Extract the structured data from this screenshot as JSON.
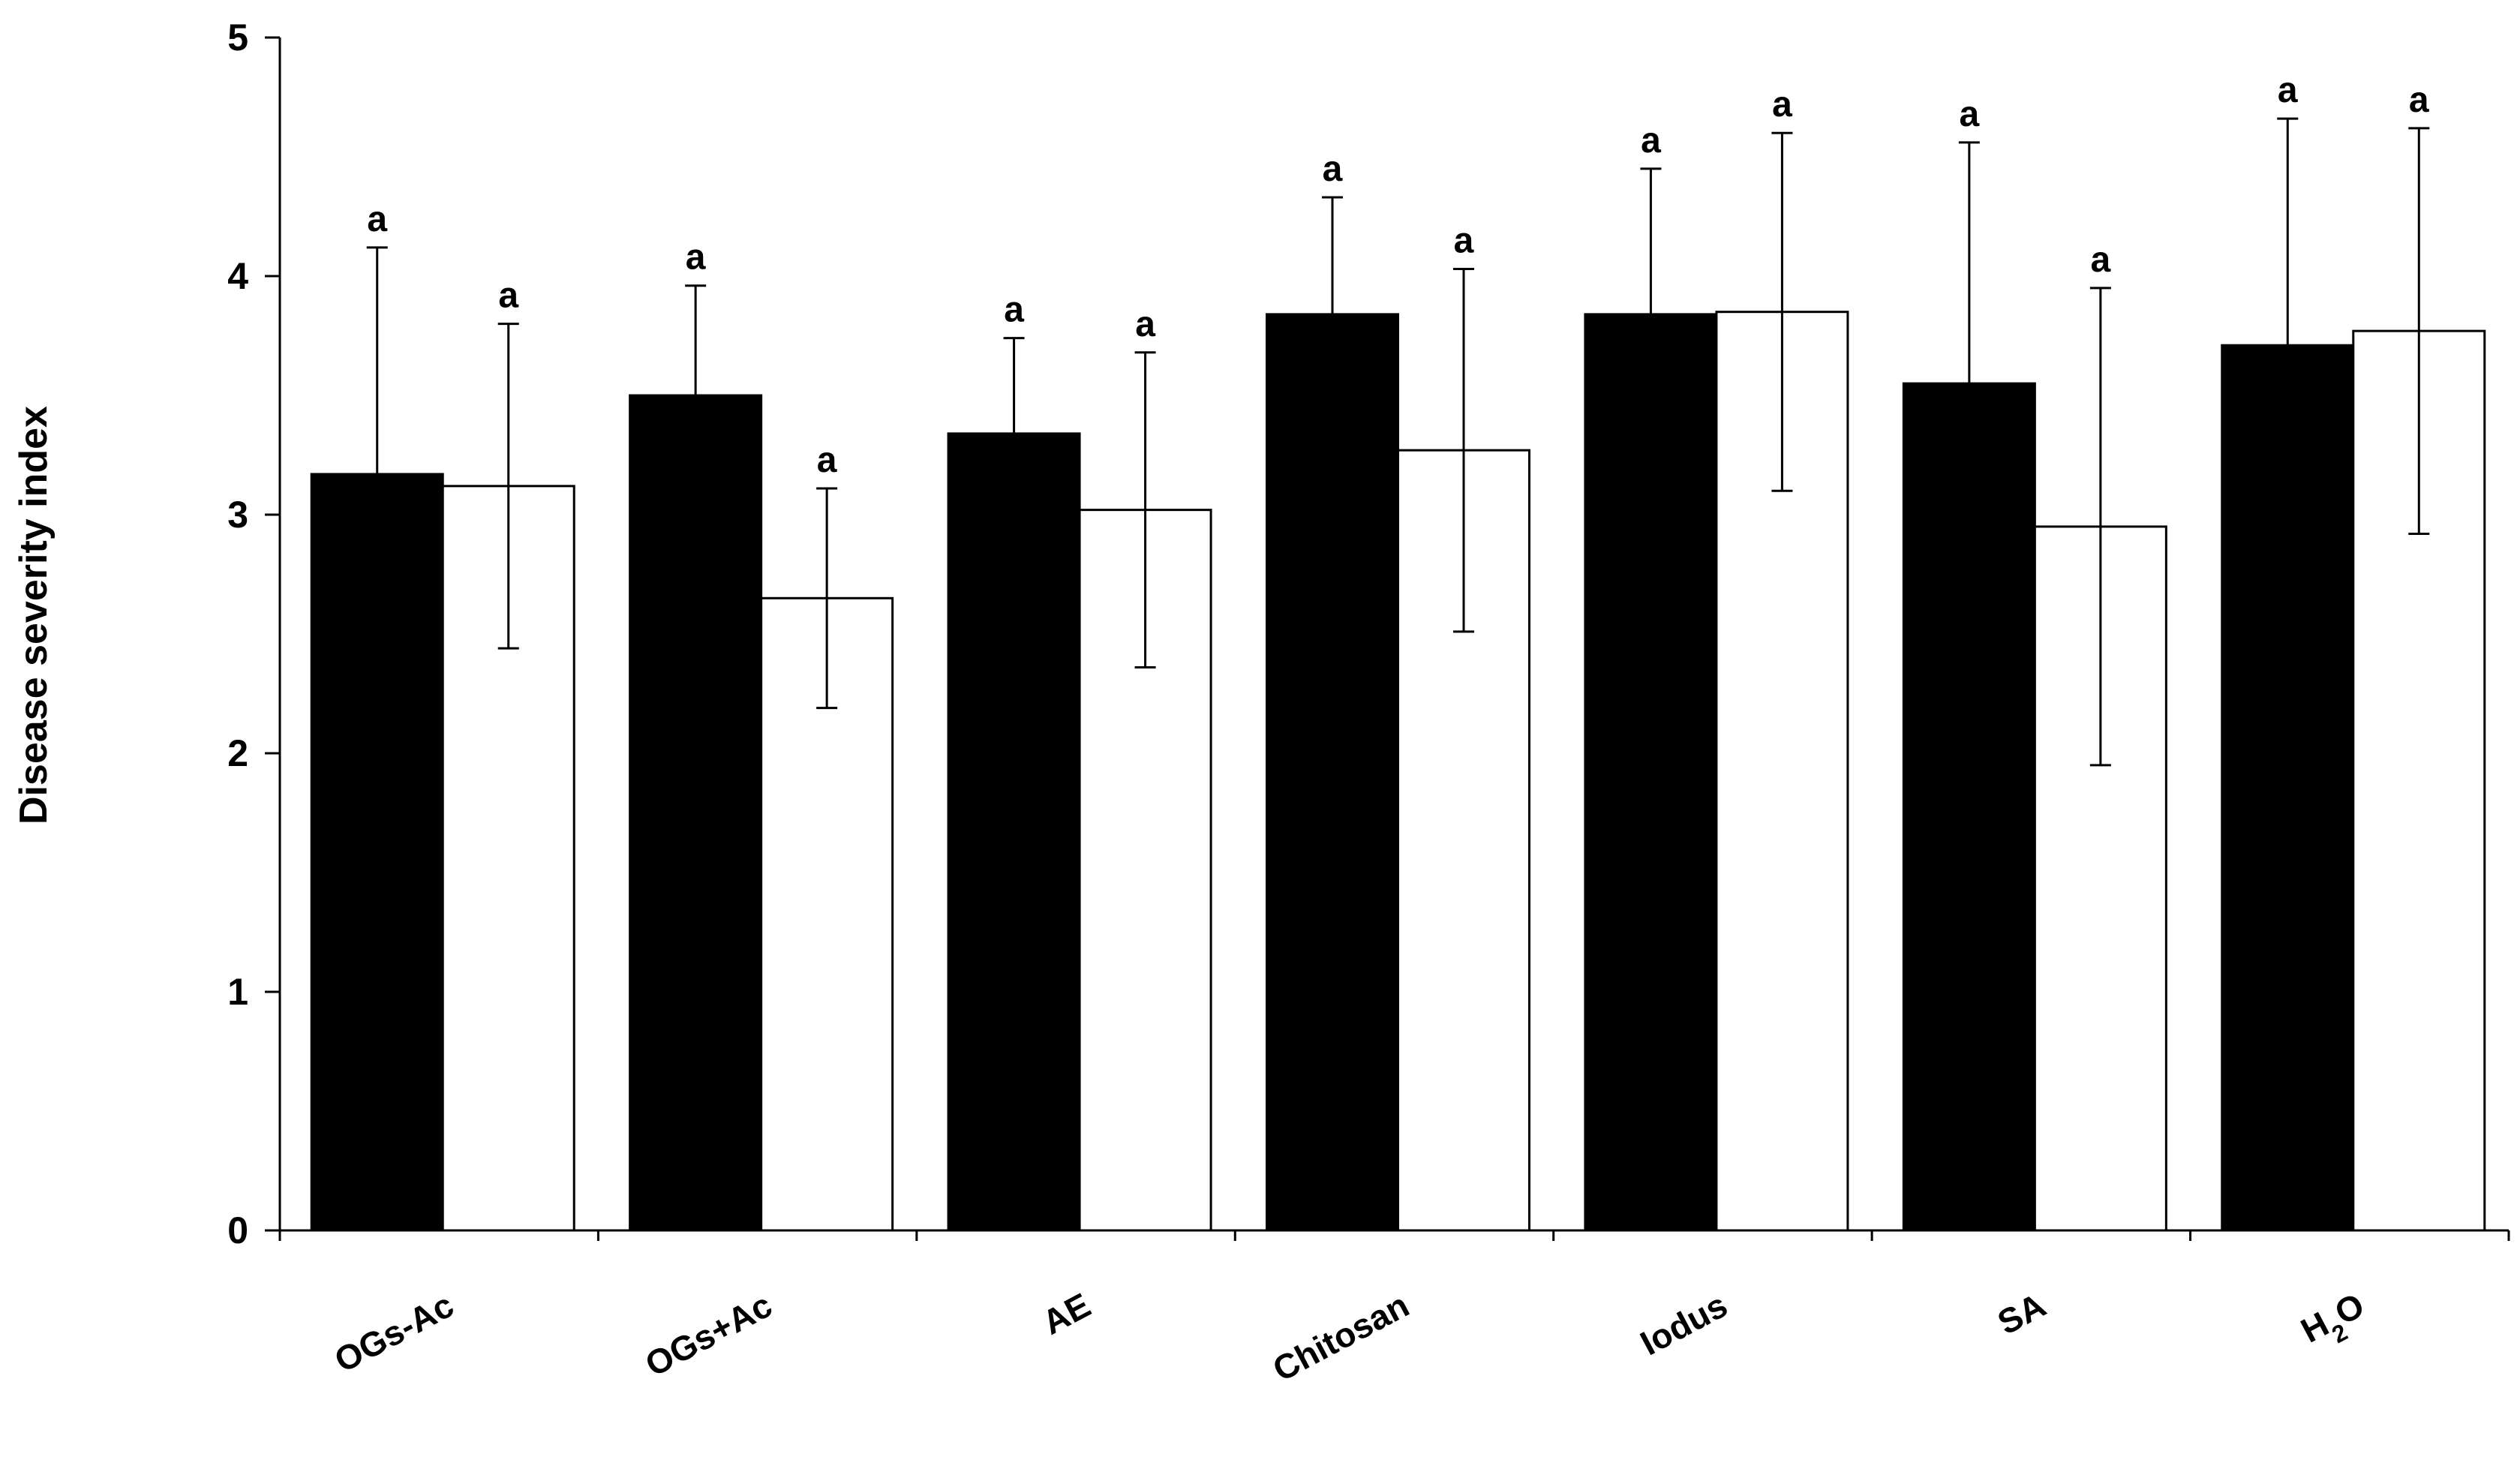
{
  "chart_data": {
    "type": "bar",
    "ylabel": "Disease severity index",
    "xlabel": "",
    "ylim": [
      0,
      5
    ],
    "yticks": [
      0,
      1,
      2,
      3,
      4,
      5
    ],
    "grid": false,
    "categories": [
      "OGs-Ac",
      "OGs+Ac",
      "AE",
      "Chitosan",
      "Iodus",
      "SA",
      "H₂O"
    ],
    "series": [
      {
        "fill": "#000000",
        "values": [
          3.17,
          3.5,
          3.34,
          3.84,
          3.84,
          3.55,
          3.71
        ],
        "errors": [
          0.95,
          0.46,
          0.4,
          0.49,
          0.61,
          1.01,
          0.95
        ],
        "labels": [
          "a",
          "a",
          "a",
          "a",
          "a",
          "a",
          "a"
        ]
      },
      {
        "fill": "#ffffff",
        "values": [
          3.12,
          2.65,
          3.02,
          3.27,
          3.85,
          2.95,
          3.77
        ],
        "errors": [
          0.68,
          0.46,
          0.66,
          0.76,
          0.75,
          1.0,
          0.85
        ],
        "labels": [
          "a",
          "a",
          "a",
          "a",
          "a",
          "a",
          "a"
        ]
      }
    ]
  }
}
